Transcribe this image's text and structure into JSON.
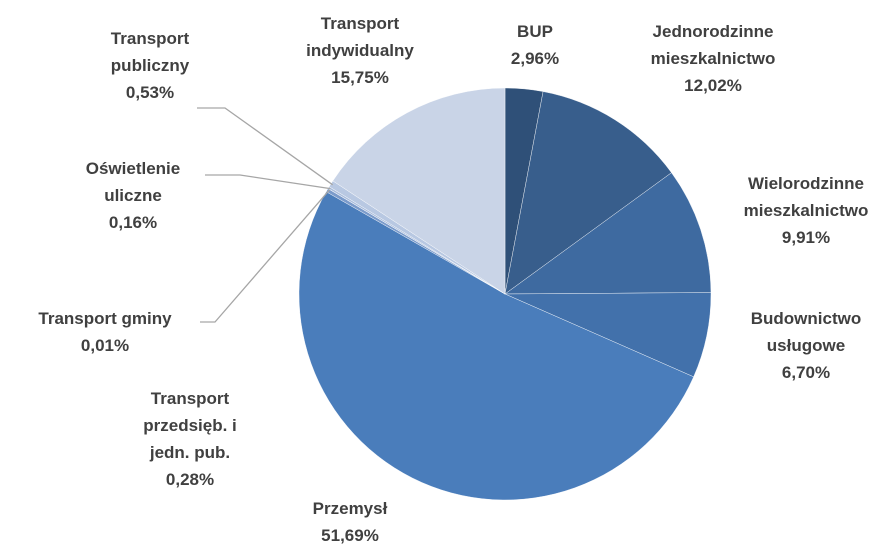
{
  "chart_data": {
    "type": "pie",
    "categories": [
      "BUP",
      "Jednorodzinne mieszkalnictwo",
      "Wielorodzinne mieszkalnictwo",
      "Budownictwo usługowe",
      "Przemysł",
      "Transport przedsięb. i jedn. pub.",
      "Transport gminy",
      "Oświetlenie uliczne",
      "Transport publiczny",
      "Transport indywidualny"
    ],
    "values": [
      2.96,
      12.02,
      9.91,
      6.7,
      51.69,
      0.28,
      0.01,
      0.16,
      0.53,
      15.75
    ],
    "value_labels": [
      "2,96%",
      "12,02%",
      "9,91%",
      "6,70%",
      "51,69%",
      "0,28%",
      "0,01%",
      "0,16%",
      "0,53%",
      "15,75%"
    ],
    "colors": [
      "#2f5078",
      "#385e8c",
      "#3e6aa0",
      "#4271ab",
      "#4a7dbb",
      "#7b9bcb",
      "#9bb2d6",
      "#aabddc",
      "#b8c8e2",
      "#c9d4e7"
    ]
  }
}
